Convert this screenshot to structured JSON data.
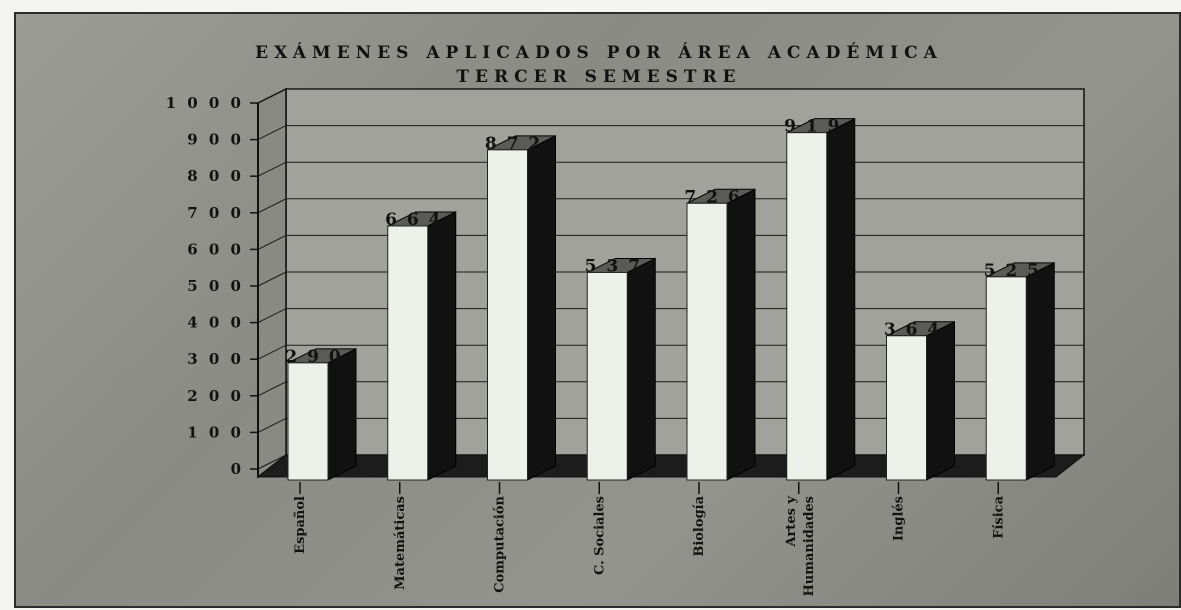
{
  "chart_data": {
    "type": "bar",
    "title": "EXÁMENES APLICADOS POR ÁREA ACADÉMICA",
    "subtitle": "TERCER SEMESTRE",
    "categories": [
      "Español",
      "Matemáticas",
      "Computación",
      "C. Sociales",
      "Biología",
      "Artes y Humanidades",
      "Inglés",
      "Física"
    ],
    "values": [
      290,
      664,
      872,
      537,
      726,
      919,
      364,
      525
    ],
    "value_labels": [
      "2 9 0",
      "6 6 4",
      "8 7 2",
      "5 3 7",
      "7 2 6",
      "9 1 9",
      "3 6 4",
      "5 2 5"
    ],
    "y_ticks": [
      "0",
      "1 0 0",
      "2 0 0",
      "3 0 0",
      "4 0 0",
      "5 0 0",
      "6 0 0",
      "7 0 0",
      "8 0 0",
      "9 0 0",
      "1 0 0 0"
    ],
    "ylim": [
      0,
      1000
    ],
    "grid": true,
    "legend": "none",
    "style": "3d-column",
    "colors": {
      "bar_front": "#eef1ea",
      "bar_side": "#111111",
      "plot_wall": "#a2a29c",
      "floor": "#1c1c1c",
      "gridline": "#1a1a1a"
    }
  }
}
